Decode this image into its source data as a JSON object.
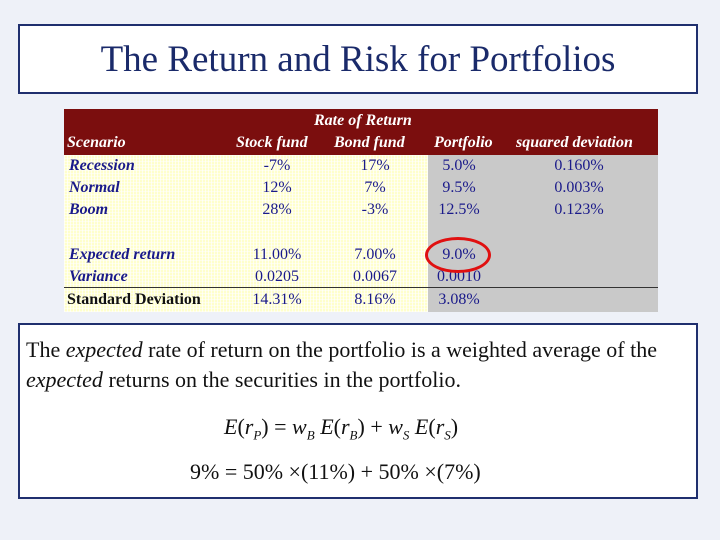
{
  "title": "The Return and Risk for Portfolios",
  "table": {
    "header_group": "Rate of Return",
    "columns": [
      "Scenario",
      "Stock fund",
      "Bond fund",
      "Portfolio",
      "squared deviation"
    ],
    "rows": [
      {
        "label": "Recession",
        "stock": "-7%",
        "bond": "17%",
        "portfolio": "5.0%",
        "sqdev": "0.160%"
      },
      {
        "label": "Normal",
        "stock": "12%",
        "bond": "7%",
        "portfolio": "9.5%",
        "sqdev": "0.003%"
      },
      {
        "label": "Boom",
        "stock": "28%",
        "bond": "-3%",
        "portfolio": "12.5%",
        "sqdev": "0.123%"
      }
    ],
    "summary": [
      {
        "label": "Expected return",
        "stock": "11.00%",
        "bond": "7.00%",
        "portfolio": "9.0%"
      },
      {
        "label": "Variance",
        "stock": "0.0205",
        "bond": "0.0067",
        "portfolio": "0.0010"
      },
      {
        "label": "Standard Deviation",
        "stock": "14.31%",
        "bond": "8.16%",
        "portfolio": "3.08%"
      }
    ],
    "colors": {
      "header": "#7b0e0e",
      "body": "#ffffcc",
      "gray": "#c9c9c9",
      "highlight_ring": "#e01010"
    }
  },
  "text": {
    "p1": "The ",
    "em1": "expected",
    "p2": " rate of return on the portfolio is a weighted average of the ",
    "em2": "expected",
    "p3": " returns on the securities in the portfolio."
  },
  "formula1": {
    "E": "E",
    "r": "r",
    "P": "P",
    "B": "B",
    "S": "S",
    "w": "w",
    "eq": " = ",
    "plus": " + "
  },
  "formula2": "9% = 50% ×(11%) + 50% ×(7%)"
}
